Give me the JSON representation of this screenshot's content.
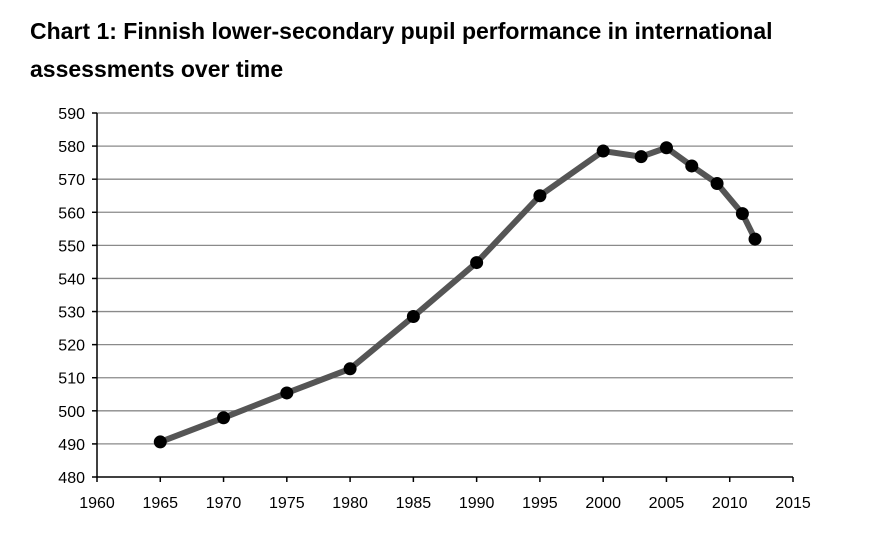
{
  "chart_data": {
    "type": "line",
    "title": "Chart 1: Finnish lower-secondary pupil performance in international assessments over time",
    "xlabel": "",
    "ylabel": "",
    "xlim": [
      1960,
      2015
    ],
    "ylim": [
      480,
      590
    ],
    "xticks": [
      1960,
      1965,
      1970,
      1975,
      1980,
      1985,
      1990,
      1995,
      2000,
      2005,
      2010,
      2015
    ],
    "yticks": [
      480,
      490,
      500,
      510,
      520,
      530,
      540,
      550,
      560,
      570,
      580,
      590
    ],
    "grid": true,
    "legend": "none",
    "series": [
      {
        "x": [
          1965,
          1970,
          1975,
          1980,
          1985,
          1990,
          1995,
          2000,
          2003,
          2005,
          2007,
          2009,
          2011,
          2012
        ],
        "y": [
          490.6,
          497.9,
          505.4,
          512.7,
          528.5,
          544.8,
          565,
          578.5,
          576.8,
          579.5,
          574,
          568.7,
          559.6,
          551.9
        ],
        "line_color": "#555555",
        "marker_color": "#000000"
      }
    ]
  }
}
